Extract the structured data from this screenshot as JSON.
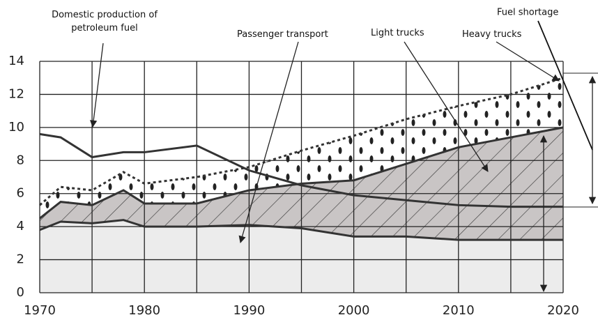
{
  "chart_data": {
    "type": "stacked_area",
    "x": [
      1970,
      1972,
      1975,
      1978,
      1980,
      1985,
      1990,
      1995,
      2000,
      2005,
      2010,
      2015,
      2020
    ],
    "series": [
      {
        "name": "Passenger transport",
        "color": "#ececec",
        "values": [
          3.8,
          4.3,
          4.2,
          4.4,
          4.0,
          4.0,
          4.1,
          3.9,
          3.4,
          3.4,
          3.2,
          3.2,
          3.2
        ]
      },
      {
        "name": "Light trucks",
        "color": "#c9c5c5",
        "values": [
          0.7,
          1.2,
          1.1,
          1.8,
          1.4,
          1.4,
          2.1,
          2.7,
          3.4,
          4.4,
          5.6,
          6.2,
          6.8
        ]
      },
      {
        "name": "Heavy trucks",
        "color": "#ffffff",
        "values": [
          0.8,
          0.9,
          0.9,
          1.1,
          1.2,
          1.6,
          1.4,
          2.0,
          2.7,
          2.7,
          2.5,
          2.6,
          3.0
        ]
      }
    ],
    "lines": [
      {
        "name": "Domestic production of petroleum fuel",
        "color": "#333333",
        "values": [
          9.6,
          9.4,
          8.2,
          8.5,
          8.5,
          8.9,
          7.4,
          6.5,
          5.9,
          5.6,
          5.3,
          5.2,
          5.2
        ]
      }
    ],
    "annotations": [
      {
        "text": "Fuel shortage"
      }
    ],
    "xlim": [
      1970,
      2020
    ],
    "xticks": [
      1970,
      1980,
      1990,
      2000,
      2010,
      2020
    ],
    "xgrid": [
      1970,
      1975,
      1980,
      1985,
      1990,
      1995,
      2000,
      2005,
      2010,
      2015,
      2020
    ],
    "ylim": [
      0,
      14
    ],
    "yticks": [
      0,
      2,
      4,
      6,
      8,
      10,
      12,
      14
    ],
    "grid": true
  }
}
